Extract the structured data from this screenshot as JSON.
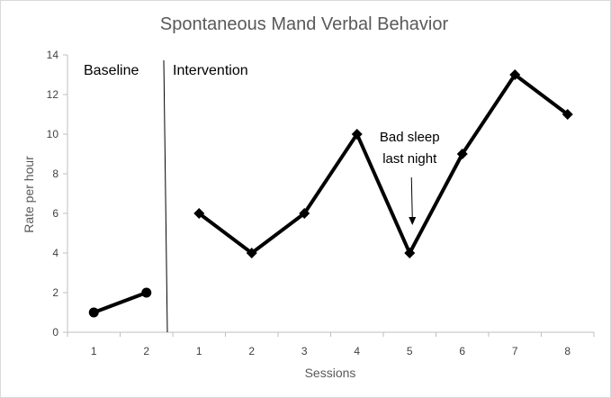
{
  "chart_data": {
    "type": "line",
    "title": "Spontaneous Mand Verbal Behavior",
    "xlabel": "Sessions",
    "ylabel": "Rate per hour",
    "ylim": [
      0,
      14
    ],
    "yticks": [
      0,
      2,
      4,
      6,
      8,
      10,
      12,
      14
    ],
    "grid": false,
    "phases": [
      {
        "label": "Baseline",
        "sessions": [
          "1",
          "2"
        ],
        "values": [
          1,
          2
        ],
        "marker": "circle"
      },
      {
        "label": "Intervention",
        "sessions": [
          "1",
          "2",
          "3",
          "4",
          "5",
          "6",
          "7",
          "8"
        ],
        "values": [
          6,
          4,
          6,
          10,
          4,
          9,
          13,
          11
        ],
        "marker": "diamond"
      }
    ],
    "annotation": {
      "lines": [
        "Bad sleep",
        "last night"
      ],
      "phase": 1,
      "point_index": 4
    },
    "colors": {
      "line": "#000000",
      "axis": "#bfbfbf",
      "title": "#595959"
    }
  }
}
